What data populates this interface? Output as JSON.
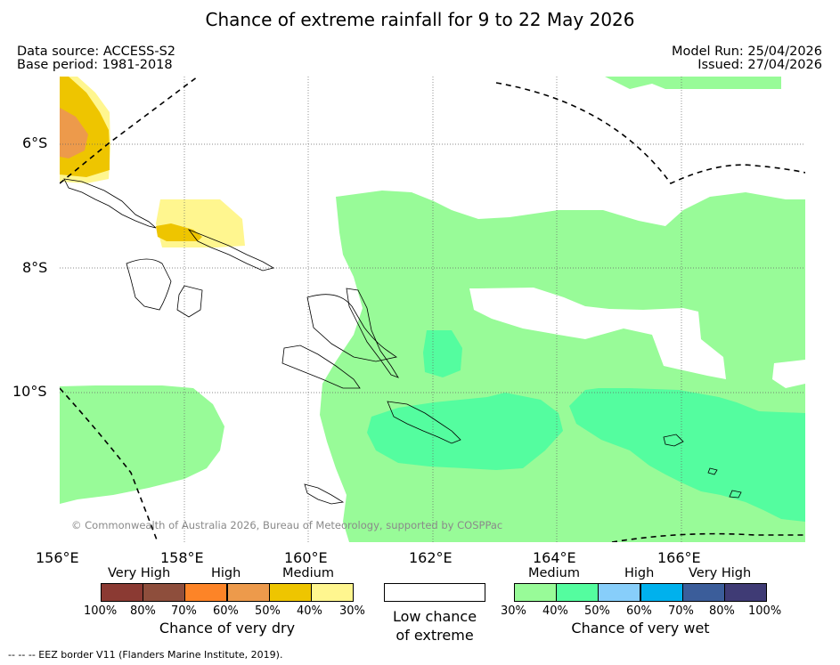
{
  "title": "Chance of extreme rainfall for 9 to 22 May 2026",
  "data_source": "Data source: ACCESS-S2",
  "base_period": "Base period: 1981-2018",
  "model_run": "Model Run: 25/04/2026",
  "issued": "Issued: 27/04/2026",
  "copyright": "© Commonwealth of Australia 2026, Bureau of Meteorology, supported by COSPPac",
  "footer": "--  --  -- EEZ border V11 (Flanders Marine Institute, 2019).",
  "map": {
    "lat_labels": [
      "6°S",
      "8°S",
      "10°S"
    ],
    "lon_labels": [
      "156°E",
      "158°E",
      "160°E",
      "162°E",
      "164°E",
      "166°E"
    ]
  },
  "legend": {
    "dry": {
      "headers": [
        "Very High",
        "High",
        "Medium"
      ],
      "ticks": [
        "100%",
        "80%",
        "70%",
        "60%",
        "50%",
        "40%",
        "30%"
      ],
      "caption": "Chance of very dry",
      "colors": [
        "#8b3a33",
        "#8e4e3c",
        "#fd8427",
        "#ed9a4b",
        "#eec500",
        "#fff68f"
      ]
    },
    "neutral": {
      "caption_line1": "Low chance",
      "caption_line2": "of extreme",
      "color": "#ffffff"
    },
    "wet": {
      "headers": [
        "Medium",
        "High",
        "Very High"
      ],
      "ticks": [
        "30%",
        "40%",
        "50%",
        "60%",
        "70%",
        "80%",
        "100%"
      ],
      "caption": "Chance of very wet",
      "colors": [
        "#98fb98",
        "#54fd9f",
        "#87cefa",
        "#00b1ed",
        "#3b5d9a",
        "#3f3b75"
      ]
    }
  }
}
